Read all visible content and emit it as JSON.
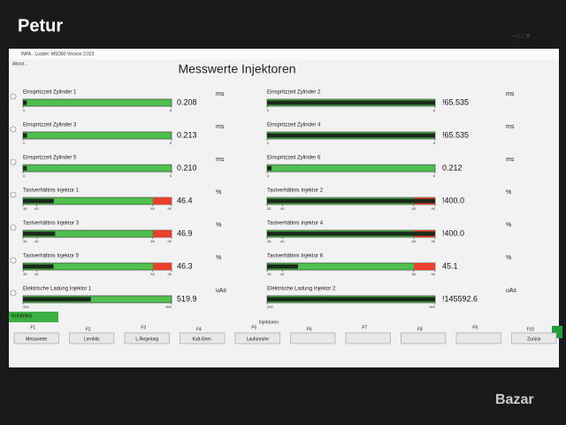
{
  "watermark": "Petur",
  "window": {
    "title": "INPA - Loader: MSD80 Version 2.023",
    "menu": "About..."
  },
  "header": {
    "title": "Messwerte Injektoren"
  },
  "columns": [
    [
      {
        "label": "Einspritzzeit Zylinder 1",
        "value": "0.208",
        "unit": "ms",
        "scale": [
          0,
          8
        ]
      },
      {
        "label": "Einspritzzeit Zylinder 3",
        "value": "0.213",
        "unit": "ms",
        "scale": [
          0,
          8
        ]
      },
      {
        "label": "Einspritzzeit Zylinder 5",
        "value": "0.210",
        "unit": "ms",
        "scale": [
          0,
          8
        ]
      },
      {
        "label": "Tastverhältnis Injektor 1",
        "value": "46.4",
        "unit": "%",
        "scale": [
          35,
          40,
          83,
          90
        ]
      },
      {
        "label": "Tastverhältnis Injektor 3",
        "value": "46.9",
        "unit": "%",
        "scale": [
          35,
          40,
          83,
          90
        ]
      },
      {
        "label": "Tastverhältnis Injektor 5",
        "value": "46.3",
        "unit": "%",
        "scale": [
          35,
          40,
          83,
          90
        ]
      },
      {
        "label": "Elektrische Ladung Injektor 1",
        "value": "519.9",
        "unit": "uAs",
        "scale": [
          200,
          900
        ]
      }
    ],
    [
      {
        "label": "Einspritzzeit Zylinder 2",
        "value": "!65.535",
        "unit": "ms",
        "scale": [
          0,
          8
        ]
      },
      {
        "label": "Einspritzzeit Zylinder 4",
        "value": "!65.535",
        "unit": "ms",
        "scale": [
          0,
          8
        ]
      },
      {
        "label": "Einspritzzeit Zylinder 6",
        "value": "0.212",
        "unit": "ms",
        "scale": [
          0,
          8
        ]
      },
      {
        "label": "Tastverhältnis Injektor 2",
        "value": "!400.0",
        "unit": "%",
        "scale": [
          35,
          40,
          83,
          90
        ]
      },
      {
        "label": "Tastverhältnis Injektor 4",
        "value": "!400.0",
        "unit": "%",
        "scale": [
          35,
          40,
          83,
          90
        ]
      },
      {
        "label": "Tastverhältnis Injektor 6",
        "value": "45.1",
        "unit": "%",
        "scale": [
          35,
          40,
          83,
          90
        ]
      },
      {
        "label": "Elektrische Ladung Injektor 2",
        "value": "!145592.6",
        "unit": "uAs",
        "scale": [
          200,
          900
        ]
      }
    ]
  ],
  "status": "RUNNING",
  "function_bar": {
    "group": "Injektoren",
    "keys": [
      {
        "key": "F1",
        "label": "Messwerte"
      },
      {
        "key": "F2",
        "label": "Lernbits"
      },
      {
        "key": "F3",
        "label": "L-Regelung"
      },
      {
        "key": "F4",
        "label": "Kalt-Gem."
      },
      {
        "key": "F5",
        "label": "Laufunruhe"
      },
      {
        "key": "F6"
      },
      {
        "key": "F7"
      },
      {
        "key": "F8"
      },
      {
        "key": "F9"
      },
      {
        "key": "F10",
        "label": "Zurück"
      }
    ]
  },
  "badge": "Bazar"
}
